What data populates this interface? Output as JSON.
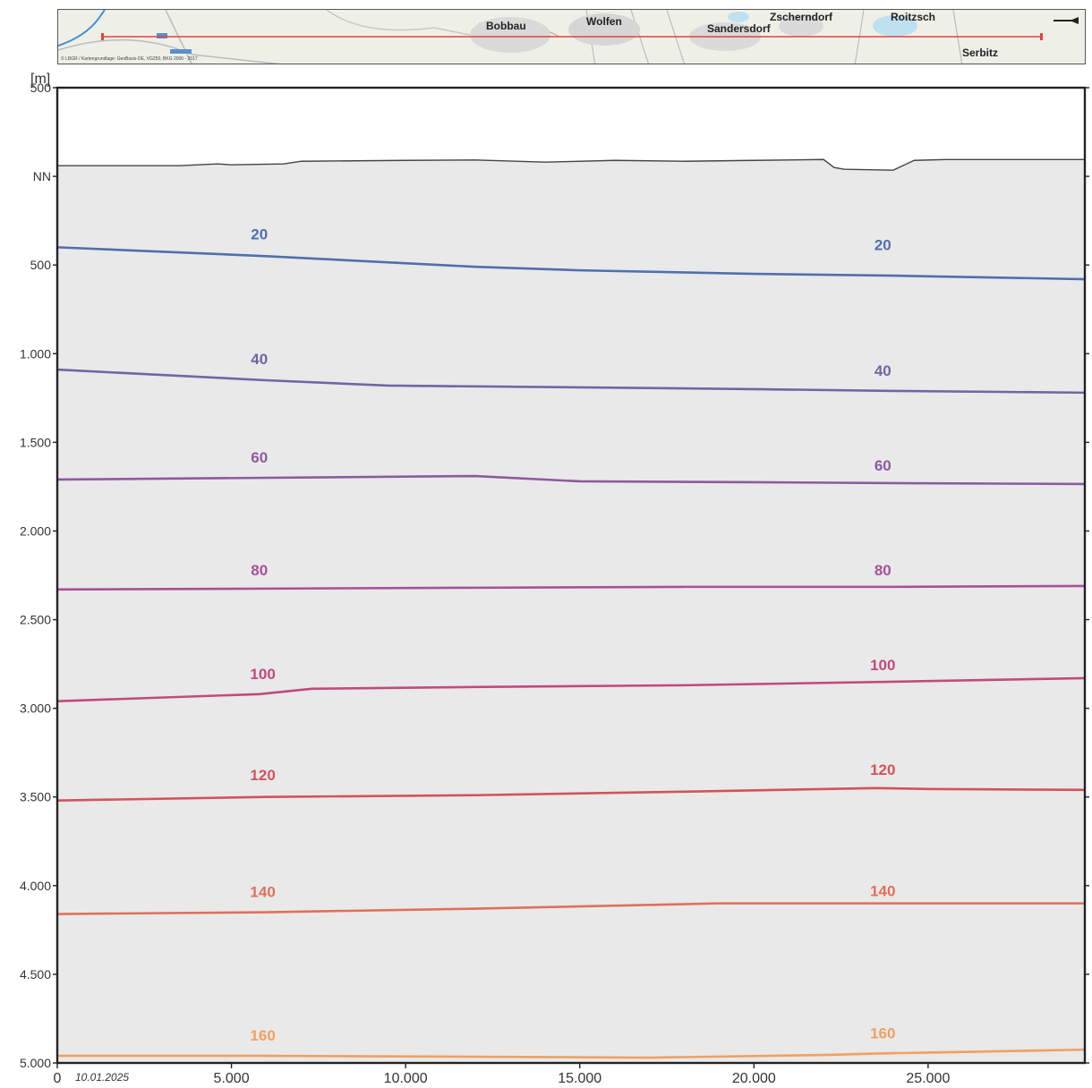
{
  "map": {
    "towns": [
      {
        "key": "bobbau",
        "name": "Bobbau"
      },
      {
        "key": "wolfen",
        "name": "Wolfen"
      },
      {
        "key": "sandersdorf",
        "name": "Sandersdorf"
      },
      {
        "key": "zscherndorf",
        "name": "Zscherndorf"
      },
      {
        "key": "roitzsch",
        "name": "Roitzsch"
      },
      {
        "key": "serbitz",
        "name": "Serbitz"
      }
    ],
    "copyright": "© LBGR / Kartengrundlage: GeoBasis-DE, VG250, BKG 2006 - 2017",
    "section_line_color": "#e8403a",
    "north_arrow_icon": "north-arrow-icon"
  },
  "chart_data": {
    "type": "line",
    "ylabel": "[m]",
    "date": "10.01.2025",
    "xlim": [
      0,
      29500
    ],
    "ylim": [
      -5000,
      500
    ],
    "y_axis_inverted_depth": true,
    "y_ticks": [
      {
        "value": 500,
        "label": "500"
      },
      {
        "value": 0,
        "label": "NN"
      },
      {
        "value": -500,
        "label": "500"
      },
      {
        "value": -1000,
        "label": "1.000"
      },
      {
        "value": -1500,
        "label": "1.500"
      },
      {
        "value": -2000,
        "label": "2.000"
      },
      {
        "value": -2500,
        "label": "2.500"
      },
      {
        "value": -3000,
        "label": "3.000"
      },
      {
        "value": -3500,
        "label": "3.500"
      },
      {
        "value": -4000,
        "label": "4.000"
      },
      {
        "value": -4500,
        "label": "4.500"
      },
      {
        "value": -5000,
        "label": "5.000"
      }
    ],
    "x_ticks": [
      {
        "value": 0,
        "label": "0"
      },
      {
        "value": 5000,
        "label": "5.000"
      },
      {
        "value": 10000,
        "label": "10.000"
      },
      {
        "value": 15000,
        "label": "15.000"
      },
      {
        "value": 20000,
        "label": "20.000"
      },
      {
        "value": 25000,
        "label": "25.000"
      }
    ],
    "terrain": {
      "color": "#444444",
      "fill": "#e9e9e9",
      "x": [
        0,
        3500,
        4600,
        5000,
        6500,
        7000,
        10000,
        12000,
        14000,
        16000,
        18000,
        20000,
        22000,
        22300,
        22600,
        24000,
        24600,
        25500,
        29500
      ],
      "y": [
        60,
        60,
        70,
        65,
        70,
        85,
        90,
        92,
        80,
        90,
        85,
        90,
        95,
        50,
        40,
        35,
        90,
        95,
        95
      ]
    },
    "series": [
      {
        "name": "20",
        "color": "#4f6fae",
        "x": [
          0,
          6000,
          12000,
          15000,
          20000,
          24000,
          29500
        ],
        "y": [
          -400,
          -450,
          -510,
          -530,
          -550,
          -560,
          -580
        ],
        "label_x": [
          5800,
          23700
        ],
        "label_y": [
          -355,
          -415
        ]
      },
      {
        "name": "40",
        "color": "#6e67a4",
        "x": [
          0,
          6000,
          9500,
          15000,
          20000,
          24000,
          29500
        ],
        "y": [
          -1090,
          -1150,
          -1180,
          -1190,
          -1200,
          -1210,
          -1220
        ],
        "label_x": [
          5800,
          23700
        ],
        "label_y": [
          -1060,
          -1125
        ]
      },
      {
        "name": "60",
        "color": "#8e5a9e",
        "x": [
          0,
          6000,
          12000,
          15000,
          20000,
          24000,
          29500
        ],
        "y": [
          -1710,
          -1700,
          -1690,
          -1720,
          -1725,
          -1730,
          -1735
        ],
        "label_x": [
          5800,
          23700
        ],
        "label_y": [
          -1615,
          -1660
        ]
      },
      {
        "name": "80",
        "color": "#a8509a",
        "x": [
          0,
          6000,
          12000,
          18000,
          24000,
          29500
        ],
        "y": [
          -2330,
          -2325,
          -2320,
          -2315,
          -2315,
          -2310
        ],
        "label_x": [
          5800,
          23700
        ],
        "label_y": [
          -2250,
          -2250
        ]
      },
      {
        "name": "100",
        "color": "#c24a7c",
        "x": [
          0,
          5800,
          7300,
          12000,
          18000,
          24000,
          29500
        ],
        "y": [
          -2960,
          -2920,
          -2890,
          -2880,
          -2870,
          -2850,
          -2830
        ],
        "label_x": [
          5900,
          23700
        ],
        "label_y": [
          -2835,
          -2785
        ]
      },
      {
        "name": "120",
        "color": "#d0545c",
        "x": [
          0,
          6000,
          12000,
          18000,
          23500,
          25000,
          29500
        ],
        "y": [
          -3520,
          -3500,
          -3490,
          -3470,
          -3450,
          -3455,
          -3460
        ],
        "label_x": [
          5900,
          23700
        ],
        "label_y": [
          -3405,
          -3375
        ]
      },
      {
        "name": "140",
        "color": "#e0705a",
        "x": [
          0,
          6000,
          12000,
          19000,
          24000,
          29500
        ],
        "y": [
          -4160,
          -4150,
          -4130,
          -4100,
          -4100,
          -4100
        ],
        "label_x": [
          5900,
          23700
        ],
        "label_y": [
          -4065,
          -4060
        ]
      },
      {
        "name": "160",
        "color": "#f0a060",
        "x": [
          0,
          6000,
          12000,
          17000,
          22000,
          24000,
          29500
        ],
        "y": [
          -4960,
          -4960,
          -4965,
          -4970,
          -4955,
          -4945,
          -4925
        ],
        "label_x": [
          5900,
          23700
        ],
        "label_y": [
          -4875,
          -4860
        ]
      }
    ]
  }
}
